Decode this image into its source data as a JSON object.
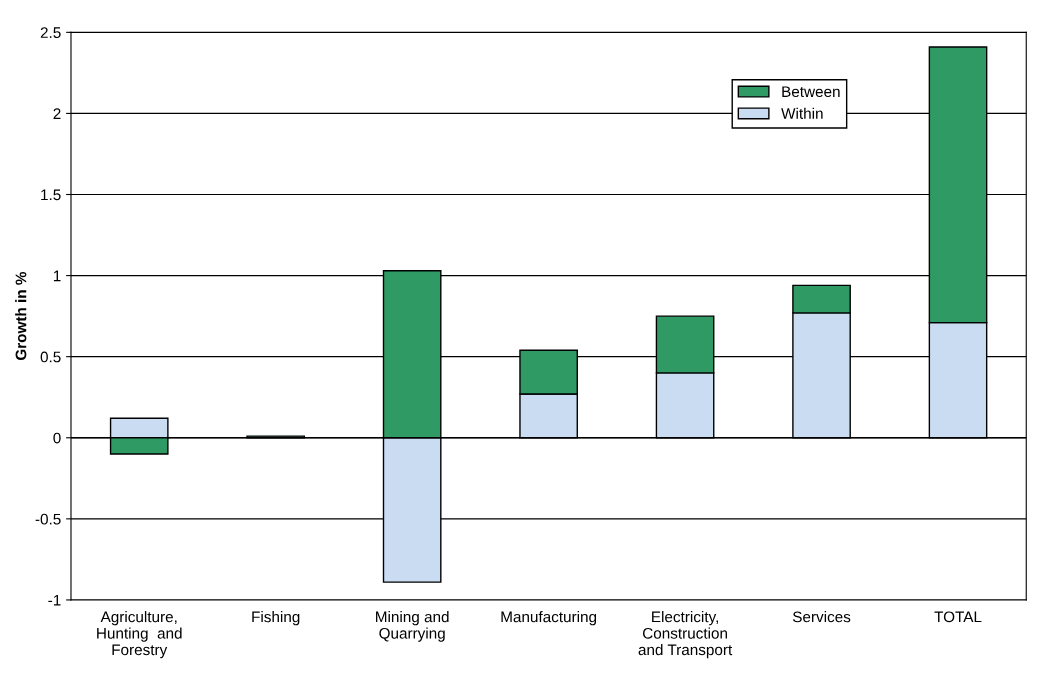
{
  "chart_data": {
    "type": "bar",
    "stacked": true,
    "ylabel": "Growth in %",
    "categories": [
      "Agriculture,\nHunting  and\nForestry",
      "Fishing",
      "Mining and\nQuarrying",
      "Manufacturing",
      "Electricity,\nConstruction\nand Transport",
      "Services",
      "TOTAL"
    ],
    "series": [
      {
        "name": "Within",
        "color": "#c9dcf2",
        "values": [
          0.12,
          null,
          -0.89,
          0.27,
          0.4,
          0.77,
          0.71
        ]
      },
      {
        "name": "Between",
        "color": "#2f9a63",
        "values": [
          -0.1,
          0.01,
          1.03,
          0.27,
          0.35,
          0.17,
          1.7
        ]
      }
    ],
    "ylim": [
      -1,
      2.5
    ],
    "yticks": [
      -1,
      -0.5,
      0,
      0.5,
      1,
      1.5,
      2,
      2.5
    ],
    "grid": "y",
    "legend": "top right"
  }
}
